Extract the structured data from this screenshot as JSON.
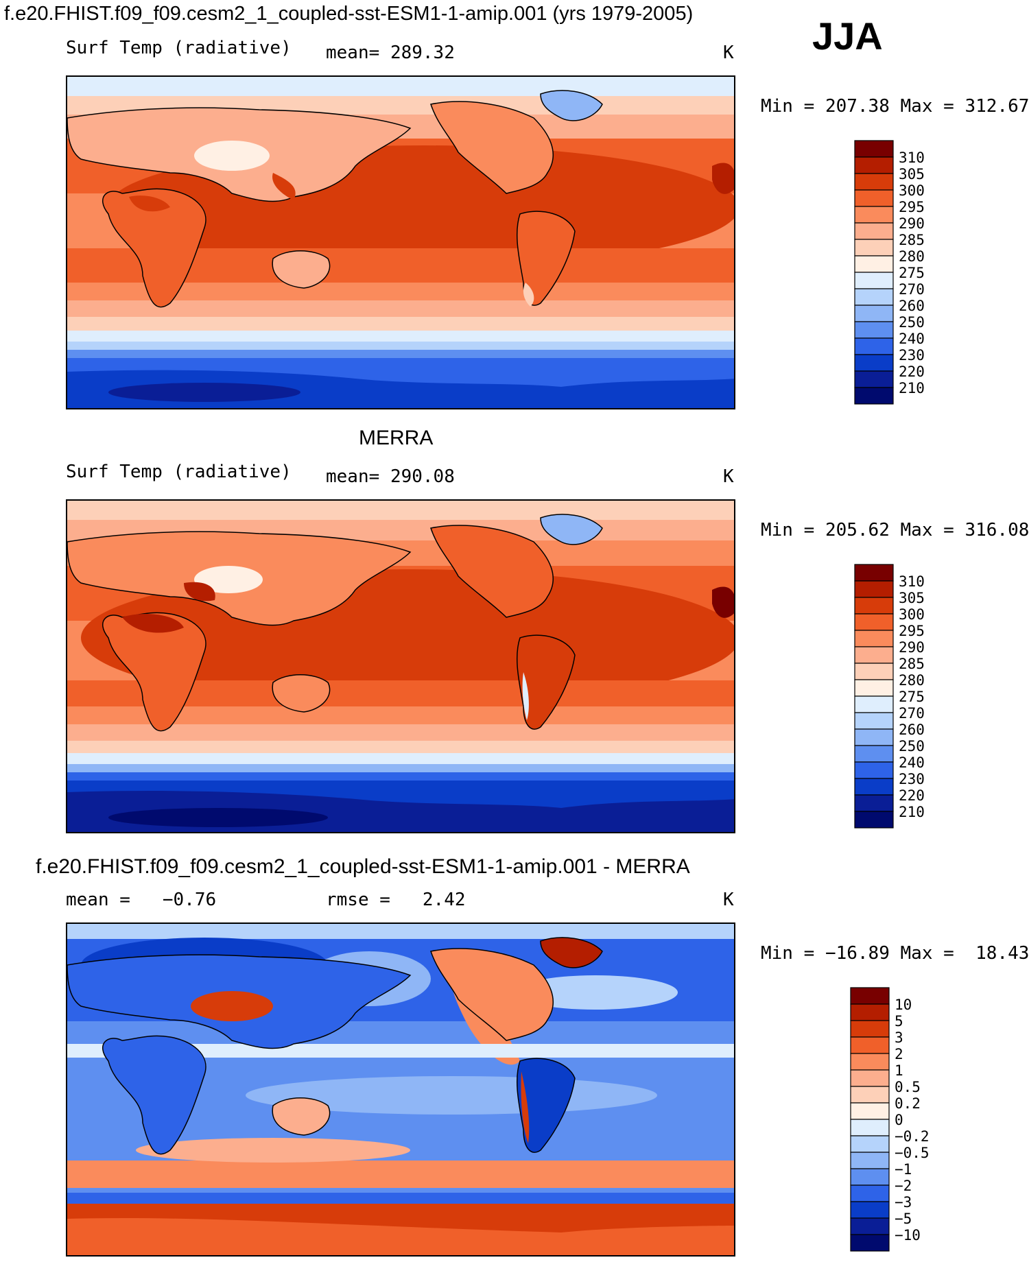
{
  "figure": {
    "main_title": "f.e20.FHIST.f09_f09.cesm2_1_coupled-sst-ESM1-1-amip.001 (yrs 1979-2005)",
    "season": "JJA"
  },
  "chart_data": [
    {
      "type": "heatmap",
      "panel": "model",
      "variable": "Surf Temp (radiative)",
      "mean_label": "mean=",
      "mean_value": "289.32",
      "units": "K",
      "min_label": "Min =",
      "min_value": "207.38",
      "max_label": "Max =",
      "max_value": "312.67",
      "colorbar_levels": [
        "310",
        "305",
        "300",
        "295",
        "290",
        "285",
        "280",
        "275",
        "270",
        "260",
        "250",
        "240",
        "230",
        "220",
        "210"
      ],
      "colorbar_colors": [
        "#780000",
        "#b41e00",
        "#d73c0a",
        "#f0602a",
        "#fa8b5c",
        "#fcae8e",
        "#fdd0b8",
        "#fff0e4",
        "#dfeefd",
        "#b5d3fb",
        "#8fb6f6",
        "#5e8ff0",
        "#2e63e8",
        "#0a3dc8",
        "#0a1e96",
        "#000a6e"
      ],
      "map_coverage": "global, 90S-90N, 0-360E (Pacific-centered)"
    },
    {
      "type": "heatmap",
      "panel": "observations",
      "title": "MERRA",
      "variable": "Surf Temp (radiative)",
      "mean_label": "mean=",
      "mean_value": "290.08",
      "units": "K",
      "min_label": "Min =",
      "min_value": "205.62",
      "max_label": "Max =",
      "max_value": "316.08",
      "colorbar_levels": [
        "310",
        "305",
        "300",
        "295",
        "290",
        "285",
        "280",
        "275",
        "270",
        "260",
        "250",
        "240",
        "230",
        "220",
        "210"
      ],
      "colorbar_colors": [
        "#780000",
        "#b41e00",
        "#d73c0a",
        "#f0602a",
        "#fa8b5c",
        "#fcae8e",
        "#fdd0b8",
        "#fff0e4",
        "#dfeefd",
        "#b5d3fb",
        "#8fb6f6",
        "#5e8ff0",
        "#2e63e8",
        "#0a3dc8",
        "#0a1e96",
        "#000a6e"
      ],
      "map_coverage": "global, 90S-90N, 0-360E (Pacific-centered)"
    },
    {
      "type": "heatmap",
      "panel": "difference",
      "title": "f.e20.FHIST.f09_f09.cesm2_1_coupled-sst-ESM1-1-amip.001 - MERRA",
      "mean_label": "mean =",
      "mean_value": "−0.76",
      "rmse_label": "rmse =",
      "rmse_value": "2.42",
      "units": "K",
      "min_label": "Min =",
      "min_value": "−16.89",
      "max_label": "Max =",
      "max_value": "18.43",
      "colorbar_levels": [
        "10",
        "5",
        "3",
        "2",
        "1",
        "0.5",
        "0.2",
        "0",
        "−0.2",
        "−0.5",
        "−1",
        "−2",
        "−3",
        "−5",
        "−10"
      ],
      "colorbar_colors": [
        "#780000",
        "#b41e00",
        "#d73c0a",
        "#f0602a",
        "#fa8b5c",
        "#fcae8e",
        "#fdd0b8",
        "#fff0e4",
        "#dfeefd",
        "#b5d3fb",
        "#8fb6f6",
        "#5e8ff0",
        "#2e63e8",
        "#0a3dc8",
        "#0a1e96",
        "#000a6e"
      ],
      "map_coverage": "global, 90S-90N, 0-360E (Pacific-centered)"
    }
  ]
}
